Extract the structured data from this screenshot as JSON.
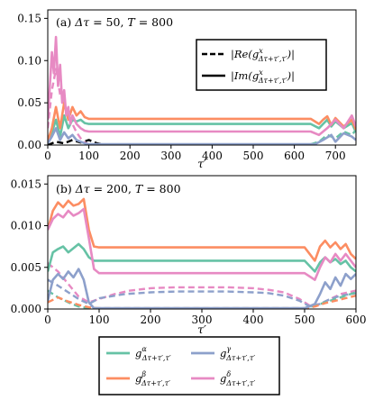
{
  "figure": {
    "top_legend": {
      "dashed_label": "|Re(g^x_{Δτ+τ′,τ′})|",
      "solid_label": "|Im(g^x_{Δτ+τ′,τ′})|",
      "dashed_text": "|Re(",
      "solid_text": "|Im(",
      "g": "g",
      "sup": "x",
      "sub": "Δτ+τ′,τ′",
      "close": ")|"
    },
    "bottom_legend": {
      "entries": [
        {
          "label": "g^α_{Δτ+τ′,τ′}",
          "g": "g",
          "sup": "α",
          "sub": "Δτ+τ′,τ′",
          "color": "#66c2a5"
        },
        {
          "label": "g^γ_{Δτ+τ′,τ′}",
          "g": "g",
          "sup": "γ",
          "sub": "Δτ+τ′,τ′",
          "color": "#8da0cb"
        },
        {
          "label": "g^β_{Δτ+τ′,τ′}",
          "g": "g",
          "sup": "β",
          "sub": "Δτ+τ′,τ′",
          "color": "#fc8d62"
        },
        {
          "label": "g^δ_{Δτ+τ′,τ′}",
          "g": "g",
          "sup": "δ",
          "sub": "Δτ+τ′,τ′",
          "color": "#e78ac3"
        }
      ]
    }
  },
  "chart_data": [
    {
      "type": "line",
      "annotation": "(a) Δτ = 50, T = 800",
      "annotation_parts": {
        "prefix": "(a) ",
        "dtau": "Δτ",
        "eq1": " = 50, ",
        "T": "T",
        "eq2": " = 800"
      },
      "xlabel": "τ′",
      "ylabel": "",
      "xlim": [
        0,
        750
      ],
      "ylim": [
        0,
        0.16
      ],
      "xticks": [
        0,
        100,
        200,
        300,
        400,
        500,
        600,
        700
      ],
      "yticks": [
        0.0,
        0.05,
        0.1,
        0.15
      ],
      "ytick_labels": [
        "0.00",
        "0.05",
        "0.10",
        "0.15"
      ],
      "series": [
        {
          "name": "g^α_{Δτ+τ′,τ′}",
          "color": "#66c2a5",
          "style": "solid",
          "x": [
            0,
            10,
            20,
            30,
            40,
            50,
            60,
            70,
            80,
            90,
            100,
            150,
            200,
            300,
            400,
            500,
            600,
            640,
            660,
            670,
            680,
            690,
            700,
            720,
            740,
            750
          ],
          "y": [
            0.003,
            0.015,
            0.03,
            0.01,
            0.035,
            0.02,
            0.03,
            0.028,
            0.03,
            0.026,
            0.025,
            0.025,
            0.025,
            0.025,
            0.025,
            0.025,
            0.025,
            0.025,
            0.02,
            0.025,
            0.03,
            0.022,
            0.028,
            0.02,
            0.026,
            0.015
          ]
        },
        {
          "name": "g^β_{Δτ+τ′,τ′}",
          "color": "#fc8d62",
          "style": "solid",
          "x": [
            0,
            10,
            20,
            30,
            40,
            50,
            60,
            70,
            80,
            90,
            100,
            150,
            200,
            300,
            400,
            500,
            600,
            640,
            660,
            670,
            680,
            690,
            700,
            720,
            740,
            750
          ],
          "y": [
            0.005,
            0.02,
            0.045,
            0.02,
            0.05,
            0.03,
            0.045,
            0.035,
            0.04,
            0.033,
            0.031,
            0.031,
            0.031,
            0.031,
            0.031,
            0.031,
            0.031,
            0.031,
            0.025,
            0.03,
            0.034,
            0.024,
            0.032,
            0.022,
            0.03,
            0.018
          ]
        },
        {
          "name": "g^γ_{Δτ+τ′,τ′}",
          "color": "#8da0cb",
          "style": "solid",
          "x": [
            0,
            10,
            20,
            30,
            40,
            50,
            60,
            70,
            80,
            90,
            100,
            150,
            200,
            300,
            400,
            500,
            600,
            650,
            670,
            690,
            700,
            720,
            740,
            750
          ],
          "y": [
            0.002,
            0.01,
            0.02,
            0.006,
            0.015,
            0.008,
            0.012,
            0.006,
            0.004,
            0.002,
            0.001,
            0.001,
            0.001,
            0.001,
            0.001,
            0.001,
            0.001,
            0.001,
            0.006,
            0.012,
            0.004,
            0.014,
            0.01,
            0.006
          ]
        },
        {
          "name": "g^δ_{Δτ+τ′,τ′}",
          "color": "#e78ac3",
          "style": "solid",
          "x": [
            0,
            5,
            10,
            15,
            20,
            25,
            30,
            35,
            40,
            45,
            50,
            55,
            60,
            70,
            80,
            90,
            100,
            150,
            200,
            300,
            400,
            500,
            600,
            640,
            660,
            680,
            700,
            720,
            740,
            750
          ],
          "y": [
            0.03,
            0.07,
            0.11,
            0.085,
            0.128,
            0.07,
            0.095,
            0.05,
            0.065,
            0.035,
            0.045,
            0.025,
            0.035,
            0.025,
            0.02,
            0.017,
            0.016,
            0.016,
            0.016,
            0.016,
            0.016,
            0.016,
            0.016,
            0.016,
            0.012,
            0.02,
            0.03,
            0.02,
            0.035,
            0.022
          ]
        },
        {
          "name": "g^δ Re",
          "color": "#e78ac3",
          "style": "dashed",
          "x": [
            0,
            10,
            20,
            30,
            40,
            50,
            60,
            70,
            80,
            90,
            100
          ],
          "y": [
            0.02,
            0.065,
            0.09,
            0.06,
            0.05,
            0.035,
            0.025,
            0.015,
            0.008,
            0.003,
            0.001
          ]
        },
        {
          "name": "g^α Re",
          "color": "#66c2a5",
          "style": "dashed",
          "x": [
            640,
            660,
            680,
            700,
            720,
            740,
            750
          ],
          "y": [
            0.001,
            0.004,
            0.012,
            0.008,
            0.016,
            0.012,
            0.018
          ]
        },
        {
          "name": "black Re",
          "color": "#000000",
          "style": "dashed",
          "x": [
            0,
            20,
            40,
            60,
            80,
            100,
            120,
            140
          ],
          "y": [
            0.0,
            0.004,
            0.002,
            0.006,
            0.003,
            0.006,
            0.002,
            0.0
          ]
        }
      ]
    },
    {
      "type": "line",
      "annotation": "(b) Δτ = 200, T = 800",
      "annotation_parts": {
        "prefix": "(b) ",
        "dtau": "Δτ",
        "eq1": " = 200, ",
        "T": "T",
        "eq2": " = 800"
      },
      "xlabel": "τ′",
      "ylabel": "",
      "xlim": [
        0,
        600
      ],
      "ylim": [
        0,
        0.016
      ],
      "xticks": [
        0,
        100,
        200,
        300,
        400,
        500,
        600
      ],
      "yticks": [
        0.0,
        0.005,
        0.01,
        0.015
      ],
      "ytick_labels": [
        "0.000",
        "0.005",
        "0.010",
        "0.015"
      ],
      "series": [
        {
          "name": "g^α_{Δτ+τ′,τ′}",
          "color": "#66c2a5",
          "style": "solid",
          "x": [
            0,
            10,
            20,
            30,
            40,
            50,
            60,
            70,
            80,
            90,
            100,
            150,
            200,
            300,
            400,
            500,
            520,
            530,
            540,
            550,
            560,
            570,
            580,
            590,
            600
          ],
          "y": [
            0.0045,
            0.0068,
            0.0072,
            0.0075,
            0.0068,
            0.0073,
            0.0078,
            0.0072,
            0.0062,
            0.0058,
            0.0058,
            0.0058,
            0.0058,
            0.0058,
            0.0058,
            0.0058,
            0.0045,
            0.0056,
            0.0062,
            0.0056,
            0.006,
            0.0054,
            0.0058,
            0.005,
            0.0045
          ]
        },
        {
          "name": "g^β_{Δτ+τ′,τ′}",
          "color": "#fc8d62",
          "style": "solid",
          "x": [
            0,
            10,
            20,
            30,
            40,
            50,
            60,
            70,
            80,
            90,
            100,
            150,
            200,
            300,
            400,
            500,
            520,
            530,
            540,
            550,
            560,
            570,
            580,
            590,
            600
          ],
          "y": [
            0.0095,
            0.0118,
            0.0128,
            0.0122,
            0.013,
            0.0124,
            0.0126,
            0.0132,
            0.0095,
            0.0075,
            0.0074,
            0.0074,
            0.0074,
            0.0074,
            0.0074,
            0.0074,
            0.0058,
            0.0075,
            0.0082,
            0.0074,
            0.008,
            0.0072,
            0.0078,
            0.0066,
            0.006
          ]
        },
        {
          "name": "g^γ_{Δτ+τ′,τ′}",
          "color": "#8da0cb",
          "style": "solid",
          "x": [
            0,
            10,
            20,
            30,
            40,
            50,
            60,
            70,
            80,
            90,
            100,
            150,
            200,
            300,
            400,
            500,
            520,
            530,
            540,
            550,
            560,
            570,
            580,
            590,
            600
          ],
          "y": [
            0.001,
            0.0035,
            0.0042,
            0.0036,
            0.0045,
            0.0038,
            0.0048,
            0.0035,
            0.0008,
            0.0001,
            0.0001,
            0.0001,
            0.0001,
            0.0001,
            0.0001,
            0.0001,
            0.0006,
            0.0018,
            0.0032,
            0.0024,
            0.0038,
            0.0028,
            0.0042,
            0.0036,
            0.0042
          ]
        },
        {
          "name": "g^δ_{Δτ+τ′,τ′}",
          "color": "#e78ac3",
          "style": "solid",
          "x": [
            0,
            10,
            20,
            30,
            40,
            50,
            60,
            70,
            80,
            90,
            100,
            150,
            200,
            300,
            400,
            500,
            520,
            530,
            540,
            550,
            560,
            570,
            580,
            590,
            600
          ],
          "y": [
            0.0095,
            0.0108,
            0.0114,
            0.011,
            0.0118,
            0.0112,
            0.0115,
            0.012,
            0.0085,
            0.0048,
            0.0043,
            0.0043,
            0.0043,
            0.0043,
            0.0043,
            0.0043,
            0.0035,
            0.005,
            0.0062,
            0.0056,
            0.0066,
            0.0058,
            0.0066,
            0.0058,
            0.005
          ]
        },
        {
          "name": "g^δ Re",
          "color": "#e78ac3",
          "style": "dashed",
          "x": [
            0,
            20,
            40,
            60,
            80,
            100,
            130,
            160,
            200,
            250,
            300,
            350,
            400,
            430,
            460,
            490,
            510,
            530,
            550,
            570,
            600
          ],
          "y": [
            0.0055,
            0.0045,
            0.003,
            0.0015,
            0.0008,
            0.0012,
            0.0018,
            0.0022,
            0.0025,
            0.0026,
            0.0026,
            0.0026,
            0.0025,
            0.0023,
            0.002,
            0.0012,
            0.0004,
            0.0006,
            0.0012,
            0.0018,
            0.0022
          ]
        },
        {
          "name": "g^γ Re",
          "color": "#8da0cb",
          "style": "dashed",
          "x": [
            0,
            20,
            40,
            60,
            80,
            100,
            150,
            200,
            250,
            300,
            350,
            400,
            430,
            460,
            490,
            510,
            530,
            550,
            570,
            600
          ],
          "y": [
            0.0035,
            0.0028,
            0.002,
            0.0012,
            0.0006,
            0.0013,
            0.0018,
            0.002,
            0.0021,
            0.0021,
            0.0021,
            0.002,
            0.0019,
            0.0016,
            0.001,
            0.0003,
            0.0006,
            0.0012,
            0.0016,
            0.0019
          ]
        },
        {
          "name": "g^α Re",
          "color": "#66c2a5",
          "style": "dashed",
          "x": [
            0,
            20,
            40,
            60,
            80,
            100,
            150,
            200,
            300,
            400,
            500,
            520,
            540,
            560,
            580,
            600
          ],
          "y": [
            0.0022,
            0.0014,
            0.0008,
            0.0003,
            0.0001,
            0.0001,
            0.0001,
            0.0001,
            0.0001,
            0.0001,
            0.0001,
            0.0004,
            0.0008,
            0.0012,
            0.0016,
            0.002
          ]
        },
        {
          "name": "g^β Re",
          "color": "#fc8d62",
          "style": "dashed",
          "x": [
            0,
            20,
            40,
            60,
            80,
            100,
            150,
            200,
            300,
            400,
            500,
            520,
            540,
            560,
            580,
            600
          ],
          "y": [
            0.0008,
            0.0014,
            0.0009,
            0.0005,
            0.0002,
            0.0001,
            0.0001,
            0.0001,
            0.0001,
            0.0001,
            0.0001,
            0.0003,
            0.0007,
            0.001,
            0.0013,
            0.0016
          ]
        }
      ]
    }
  ]
}
